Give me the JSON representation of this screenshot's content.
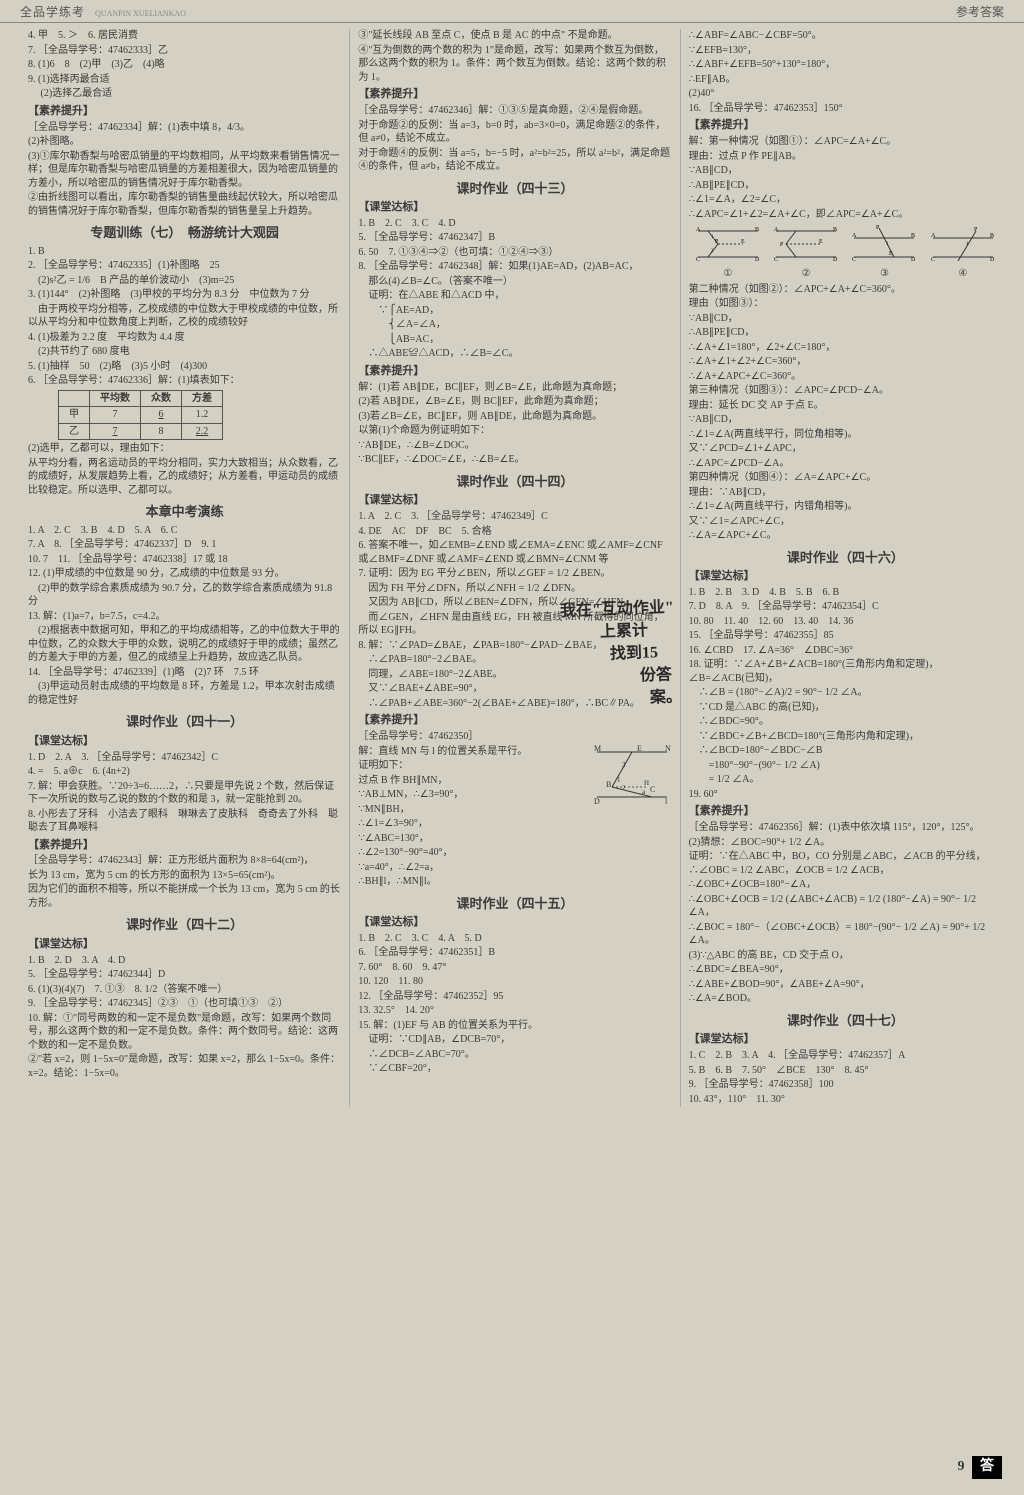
{
  "header": {
    "brand": "全品学练考",
    "pinyin": "QUANPIN XUELIANKAO",
    "right": "参考答案"
  },
  "pagefoot": {
    "num": "9",
    "label": "答"
  },
  "handwriting": {
    "l1": "我在\"互动作业\"",
    "l2": "上累计",
    "l3": "找到15",
    "l4": "份答",
    "l5": "案。"
  },
  "col1": {
    "lines1": [
      "4. 甲　5. ＞　6. 居民消费",
      "7. ［全品导学号：47462333］乙",
      "8. (1)6　8　(2)甲　(3)乙　(4)略",
      "9. (1)选择丙最合适",
      "　 (2)选择乙最合适"
    ],
    "sub1": "【素养提升】",
    "lines2": [
      "［全品导学号：47462334］解：(1)表中填 8，4/3。",
      "(2)补图略。",
      "(3)①库尔勒香梨与哈密瓜销量的平均数相同，从平均数来看销售情况一样；但是库尔勒香梨与哈密瓜销量的方差相差很大，因为哈密瓜销量的方差小，所以哈密瓜的销售情况好于库尔勒香梨。",
      "②由折线图可以看出，库尔勒香梨的销售量曲线起伏较大，所以哈密瓜的销售情况好于库尔勒香梨，但库尔勒香梨的销售量呈上升趋势。"
    ],
    "title1": "专题训练（七）　畅游统计大观园",
    "lines3": [
      "1. B",
      "2. ［全品导学号：47462335］(1)补图略　25",
      "　(2)s²乙 = 1/6　B 产品的单价波动小　(3)m=25",
      "3. (1)144°　(2)补图略　(3)甲校的平均分为 8.3 分　中位数为 7 分",
      "　由于两校平均分相等，乙校成绩的中位数大于甲校成绩的中位数，所以从平均分和中位数角度上判断，乙校的成绩较好",
      "4. (1)极差为 2.2 度　平均数为 4.4 度",
      "　(2)共节约了 680 度电",
      "5. (1)抽样　50　(2)略　(3)5 小时　(4)300",
      "6. ［全品导学号：47462336］解：(1)填表如下："
    ],
    "table": {
      "headers": [
        "",
        "平均数",
        "众数",
        "方差"
      ],
      "rows": [
        [
          "甲",
          "7",
          "6",
          "1.2"
        ],
        [
          "乙",
          "7",
          "8",
          "2.2"
        ]
      ],
      "underline_cells": [
        [
          0,
          2
        ],
        [
          1,
          0
        ],
        [
          1,
          2
        ]
      ]
    },
    "lines4": [
      "(2)选甲，乙都可以，理由如下：",
      "从平均分看，两名运动员的平均分相同，实力大致相当；从众数看，乙的成绩好，从发展趋势上看，乙的成绩好；从方差看，甲运动员的成绩比较稳定。所以选甲、乙都可以。"
    ],
    "title2": "本章中考演练",
    "lines5": [
      "1. A　2. C　3. B　4. D　5. A　6. C",
      "7. A　8. ［全品导学号：47462337］D　9. 1",
      "10. 7　11. ［全品导学号：47462338］17 或 18",
      "12. (1)甲成绩的中位数是 90 分，乙成绩的中位数是 93 分。",
      "　(2)甲的数学综合素质成绩为 90.7 分，乙的数学综合素质成绩为 91.8 分",
      "13. 解：(1)a=7，b=7.5，c=4.2。",
      "　(2)根据表中数据可知，甲和乙的平均成绩相等，乙的中位数大于甲的中位数，乙的众数大于甲的众数，说明乙的成绩好于甲的成绩；虽然乙的方差大于甲的方差，但乙的成绩呈上升趋势，故应选乙队员。",
      "14. ［全品导学号：47462339］(1)略　(2)7 环　7.5 环",
      "　(3)甲运动员射击成绩的平均数是 8 环，方差是 1.2，甲本次射击成绩的稳定性好"
    ],
    "title3": "课时作业（四十一）",
    "sub2": "【课堂达标】",
    "lines6": [
      "1. D　2. A　3. ［全品导学号：47462342］C",
      "4. =　5. a⊕c　6. (4n+2)",
      "7. 解：甲会获胜。∵20÷3=6……2，∴只要是甲先说 2 个数，然后保证下一次所说的数与乙说的数的个数的和是 3，就一定能抢到 20。",
      "8. 小彤去了牙科　小洁去了眼科　琳琳去了皮肤科　奇奇去了外科　聪聪去了耳鼻喉科"
    ],
    "sub3": "【素养提升】",
    "lines7": [
      "［全品导学号：47462343］解：正方形纸片面积为 8×8=64(cm²)，",
      "长为 13 cm，宽为 5 cm 的长方形的面积为 13×5=65(cm²)。",
      "因为它们的面积不相等，所以不能拼成一个长为 13 cm，宽为 5 cm 的长方形。"
    ],
    "title4": "课时作业（四十二）",
    "sub4": "【课堂达标】",
    "lines8": [
      "1. B　2. D　3. A　4. D",
      "5. ［全品导学号：47462344］D",
      "6. (1)(3)(4)(7)　7. ①③　8. 1/2（答案不唯一）",
      "9. ［全品导学号：47462345］②③　①（也可填①③　②）",
      "10. 解：①\"同号两数的和一定不是负数\"是命题，改写：如果两个数同号，那么这两个数的和一定不是负数。条件：两个数同号。结论：这两个数的和一定不是负数。",
      "②\"若 x=2，则 1−5x=0\"是命题，改写：如果 x=2，那么 1−5x=0。条件：x=2。结论：1−5x=0。"
    ]
  },
  "col2": {
    "lines1": [
      "③\"延长线段 AB 至点 C，使点 B 是 AC 的中点\" 不是命题。",
      "④\"互为倒数的两个数的积为 1\"是命题，改写：如果两个数互为倒数，那么这两个数的积为 1。条件：两个数互为倒数。结论：这两个数的积为 1。"
    ],
    "sub1": "【素养提升】",
    "lines2": [
      "［全品导学号：47462346］解：①③⑤是真命题，②④是假命题。",
      "对于命题②的反例：当 a=3，b=0 时，ab=3×0=0，满足命题②的条件，但 a≠0，结论不成立。",
      "对于命题④的反例：当 a=5，b=−5 时，a²=b²=25，所以 a²=b²，满足命题④的条件，但 a≠b，结论不成立。"
    ],
    "title1": "课时作业（四十三）",
    "sub2": "【课堂达标】",
    "lines3": [
      "1. B　2. C　3. C　4. D",
      "5. ［全品导学号：47462347］B",
      "6. 50　7. ①③④⇒②（也可填：①②④⇒③）",
      "8. ［全品导学号：47462348］解：如果(1)AE=AD，(2)AB=AC，",
      "　那么(4)∠B=∠C。（答案不唯一）",
      "　证明：在△ABE 和△ACD 中，",
      "　　∵⎧AE=AD，",
      "　　　⎨∠A=∠A，",
      "　　　⎩AB=AC，",
      "　∴△ABE≌△ACD，∴∠B=∠C。"
    ],
    "sub3": "【素养提升】",
    "lines4": [
      "解：(1)若 AB∥DE，BC∥EF，则∠B=∠E，此命题为真命题；",
      "(2)若 AB∥DE，∠B=∠E，则 BC∥EF，此命题为真命题；",
      "(3)若∠B=∠E，BC∥EF，则 AB∥DE，此命题为真命题。",
      "以第(1)个命题为例证明如下：",
      "∵AB∥DE，∴∠B=∠DOC。",
      "∵BC∥EF，∴∠DOC=∠E，∴∠B=∠E。"
    ],
    "title2": "课时作业（四十四）",
    "sub4": "【课堂达标】",
    "lines5": [
      "1. A　2. C　3. ［全品导学号：47462349］C",
      "4. DE　AC　DF　BC　5. 合格",
      "6. 答案不唯一，如∠EMB=∠END 或∠EMA=∠ENC 或∠AMF=∠CNF 或∠BMF=∠DNF 或∠AMF=∠END 或∠BMN=∠CNM 等",
      "7. 证明：因为 EG 平分∠BEN，所以∠GEF = 1/2 ∠BEN。",
      "　因为 FH 平分∠DFN，所以∠NFH = 1/2 ∠DFN。",
      "　又因为 AB∥CD，所以∠BEN=∠DFN，所以∠GEN=∠HFN。",
      "　而∠GEN，∠HFN 是由直线 EG，FH 被直线 MN 所截得的同位角，所以 EG∥FH。",
      "8. 解：∵∠PAD=∠BAE，∠PAB=180°−∠PAD−∠BAE，",
      "　∴∠PAB=180°−2∠BAE。",
      "　同理，∠ABE=180°−2∠ABE。",
      "　又∵∠BAE+∠ABE=90°，",
      "　∴∠PAB+∠ABE=360°−2(∠BAE+∠ABE)=180°，∴BC∥PA。"
    ],
    "sub5": "【素养提升】",
    "lines6": [
      "［全品导学号：47462350］",
      "解：直线 MN 与 l 的位置关系是平行。",
      "证明如下：",
      "过点 B 作 BH∥MN，",
      "∵AB⊥MN，∴∠3=90°，",
      "∵MN∥BH，",
      "∴∠1=∠3=90°，",
      "∵∠ABC=130°，",
      "∴∠2=130°−90°=40°，",
      "∵a=40°，∴∠2=a，",
      "∴BH∥l，∴MN∥l。"
    ],
    "title3": "课时作业（四十五）",
    "sub6": "【课堂达标】",
    "lines7": [
      "1. B　2. C　3. C　4. A　5. D",
      "6. ［全品导学号：47462351］B",
      "7. 60°　8. 60　9. 47°",
      "10. 120　11. 80",
      "12. ［全品导学号：47462352］95",
      "13. 32.5°　14. 20°",
      "15. 解：(1)EF 与 AB 的位置关系为平行。",
      "　证明：∵CD∥AB，∠DCB=70°，",
      "　∴∠DCB=∠ABC=70°。",
      "　∵∠CBF=20°，"
    ]
  },
  "col3": {
    "lines1": [
      "∴∠ABF=∠ABC−∠CBF=50°。",
      "∵∠EFB=130°，",
      "∴∠ABF+∠EFB=50°+130°=180°，",
      "∴EF∥AB。",
      "(2)40°",
      "16. ［全品导学号：47462353］150°"
    ],
    "sub1": "【素养提升】",
    "lines2": [
      "解：第一种情况（如图①）：∠APC=∠A+∠C。",
      "理由：过点 P 作 PE∥AB。",
      "∵AB∥CD，",
      "∴AB∥PE∥CD，",
      "∴∠1=∠A，∠2=∠C，",
      "∴∠APC=∠1+∠2=∠A+∠C，即∠APC=∠A+∠C。"
    ],
    "labels": [
      "①",
      "②",
      "③",
      "④"
    ],
    "lines3": [
      "第二种情况（如图②）：∠APC+∠A+∠C=360°。",
      "理由（如图③）：",
      "∵AB∥CD，",
      "∴AB∥PE∥CD，",
      "∴∠A+∠1=180°，∠2+∠C=180°，",
      "∴∠A+∠1+∠2+∠C=360°，",
      "∴∠A+∠APC+∠C=360°。",
      "第三种情况（如图③）：∠APC=∠PCD−∠A。",
      "理由：延长 DC 交 AP 于点 E。",
      "∵AB∥CD，",
      "∴∠1=∠A(两直线平行，同位角相等)。",
      "又∵∠PCD=∠1+∠APC，",
      "∴∠APC=∠PCD−∠A。",
      "第四种情况（如图④）：∠A=∠APC+∠C。",
      "理由：∵AB∥CD，",
      "∴∠1=∠A(两直线平行，内错角相等)。",
      "又∵∠1=∠APC+∠C，",
      "∴∠A=∠APC+∠C。"
    ],
    "title1": "课时作业（四十六）",
    "sub2": "【课堂达标】",
    "lines4": [
      "1. B　2. B　3. D　4. B　5. B　6. B",
      "7. D　8. A　9. ［全品导学号：47462354］C",
      "10. 80　11. 40　12. 60　13. 40　14. 36",
      "15. ［全品导学号：47462355］85",
      "16. ∠CBD　17. ∠A=36°　∠DBC=36°",
      "18. 证明：∵∠A+∠B+∠ACB=180°(三角形内角和定理)，∠B=∠ACB(已知)，",
      "　∴∠B = (180°−∠A)/2 = 90°− 1/2 ∠A。",
      "　∵CD 是△ABC 的高(已知)，",
      "　∴∠BDC=90°。",
      "　∵∠BDC+∠B+∠BCD=180°(三角形内角和定理)，",
      "　∴∠BCD=180°−∠BDC−∠B",
      "　　=180°−90°−(90°− 1/2 ∠A)",
      "　　= 1/2 ∠A。",
      "19. 60°"
    ],
    "sub3": "【素养提升】",
    "lines5": [
      "［全品导学号：47462356］解：(1)表中依次填 115°，120°，125°。",
      "(2)猜想：∠BOC=90°+ 1/2 ∠A。",
      "证明：∵在△ABC 中，BO，CO 分别是∠ABC，∠ACB 的平分线，∴∠OBC = 1/2 ∠ABC，∠OCB = 1/2 ∠ACB，",
      "∴∠OBC+∠OCB=180°−∠A，",
      "∴∠OBC+∠OCB = 1/2 (∠ABC+∠ACB) = 1/2 (180°−∠A) = 90°− 1/2 ∠A，",
      "∴∠BOC = 180°−（∠OBC+∠OCB）= 180°−(90°− 1/2 ∠A) = 90°+ 1/2 ∠A。",
      "(3)∵△ABC 的高 BE，CD 交于点 O，",
      "∴∠BDC=∠BEA=90°，",
      "∴∠ABE+∠BOD=90°，∠ABE+∠A=90°，",
      "∴∠A=∠BOD。"
    ],
    "title2": "课时作业（四十七）",
    "sub4": "【课堂达标】",
    "lines6": [
      "1. C　2. B　3. A　4. ［全品导学号：47462357］A",
      "5. B　6. B　7. 50°　∠BCE　130°　8. 45°",
      "9. ［全品导学号：47462358］100",
      "10. 43°，110°　11. 30°"
    ]
  }
}
